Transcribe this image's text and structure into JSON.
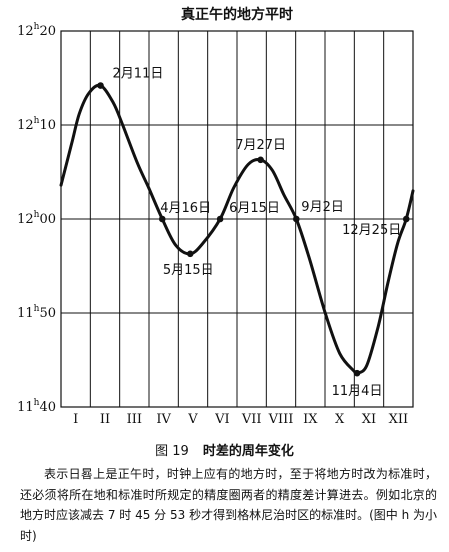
{
  "chart_data": {
    "type": "line",
    "title": "真正午的地方平时",
    "x_ticks": [
      "I",
      "II",
      "III",
      "IV",
      "V",
      "VI",
      "VII",
      "VIII",
      "IX",
      "X",
      "XI",
      "XII"
    ],
    "y_ticks": [
      {
        "value": 20,
        "label_main": "12",
        "label_sup": "h",
        "label_min": "20"
      },
      {
        "value": 10,
        "label_main": "12",
        "label_sup": "h",
        "label_min": "10"
      },
      {
        "value": 0,
        "label_main": "12",
        "label_sup": "h",
        "label_min": "00"
      },
      {
        "value": -10,
        "label_main": "11",
        "label_sup": "h",
        "label_min": "50"
      },
      {
        "value": -20,
        "label_main": "11",
        "label_sup": "h",
        "label_min": "40"
      }
    ],
    "ylim": [
      -20,
      20
    ],
    "xlim": [
      1,
      366
    ],
    "grid": true,
    "curve": [
      [
        1,
        3.6
      ],
      [
        12,
        8
      ],
      [
        20,
        11.2
      ],
      [
        30,
        13.4
      ],
      [
        42,
        14.2
      ],
      [
        55,
        12.4
      ],
      [
        65,
        10
      ],
      [
        80,
        6
      ],
      [
        92,
        3.3
      ],
      [
        106,
        0
      ],
      [
        120,
        -2.8
      ],
      [
        135,
        -3.7
      ],
      [
        148,
        -2.6
      ],
      [
        166,
        0
      ],
      [
        180,
        3.3
      ],
      [
        195,
        5.8
      ],
      [
        208,
        6.3
      ],
      [
        220,
        5.2
      ],
      [
        232,
        2.6
      ],
      [
        245,
        0
      ],
      [
        258,
        -4
      ],
      [
        275,
        -10
      ],
      [
        290,
        -14.3
      ],
      [
        305,
        -16.2
      ],
      [
        308,
        -16.4
      ],
      [
        318,
        -15.6
      ],
      [
        330,
        -11.4
      ],
      [
        340,
        -6.8
      ],
      [
        350,
        -2.6
      ],
      [
        359,
        0
      ],
      [
        366,
        3
      ]
    ],
    "points": [
      {
        "day": 42,
        "value": 14.2,
        "label": "2月11日"
      },
      {
        "day": 106,
        "value": 0,
        "label": "4月16日"
      },
      {
        "day": 135,
        "value": -3.7,
        "label": "5月15日"
      },
      {
        "day": 166,
        "value": 0,
        "label": "6月15日"
      },
      {
        "day": 208,
        "value": 6.3,
        "label": "7月27日"
      },
      {
        "day": 245,
        "value": 0,
        "label": "9月2日"
      },
      {
        "day": 308,
        "value": -16.4,
        "label": "11月4日"
      },
      {
        "day": 359,
        "value": 0,
        "label": "12月25日"
      }
    ]
  },
  "caption": {
    "figure_number": "图 19",
    "figure_title": "时差的周年变化",
    "description": "表示日晷上是正午时，时钟上应有的地方时，至于将地方时改为标准时，还必须将所在地和标准时所规定的精度圈两者的精度差计算进去。例如北京的地方时应该减去 7 时 45 分 53 秒才得到格林尼治时区的标准时。(图中 h 为小时)"
  }
}
